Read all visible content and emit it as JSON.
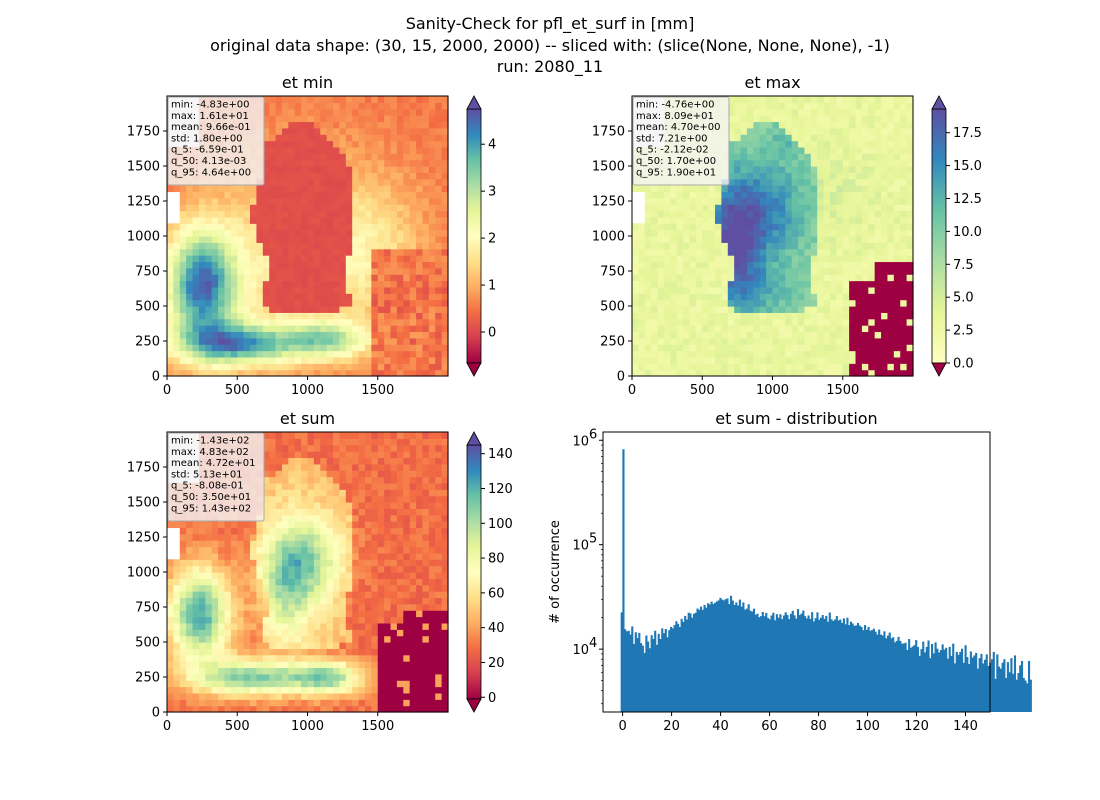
{
  "figure": {
    "suptitle_lines": [
      "Sanity-Check for pfl_et_surf in [mm]",
      "original data shape: (30, 15, 2000, 2000) -- sliced with: (slice(None, None, None), -1)",
      "run: 2080_11"
    ]
  },
  "chart_data": [
    {
      "type": "heatmap",
      "title": "et min",
      "colormap": "Spectral",
      "x_ticks": [
        "0",
        "500",
        "1000",
        "1500"
      ],
      "y_ticks": [
        "0",
        "250",
        "500",
        "750",
        "1000",
        "1250",
        "1500",
        "1750"
      ],
      "x_range": [
        0,
        2000
      ],
      "y_range": [
        0,
        2000
      ],
      "colorbar_range": [
        -0.66,
        4.75
      ],
      "colorbar_ticks": [
        "0",
        "1",
        "2",
        "3",
        "4"
      ],
      "colorbar_tick_values": [
        0,
        1,
        2,
        3,
        4
      ],
      "colorbar_extend": "both",
      "stats": [
        "min: -4.83e+00",
        "max: 1.61e+01",
        "mean: 9.66e-01",
        "std: 1.80e+00",
        "q_5: -6.59e-01",
        "q_50: 4.13e-03",
        "q_95: 4.64e+00"
      ],
      "pattern": "min"
    },
    {
      "type": "heatmap",
      "title": "et max",
      "colormap": "Spectral",
      "x_ticks": [
        "0",
        "500",
        "1000",
        "1500"
      ],
      "y_ticks": [
        "0",
        "250",
        "500",
        "750",
        "1000",
        "1250",
        "1500",
        "1750"
      ],
      "x_range": [
        0,
        2000
      ],
      "y_range": [
        0,
        2000
      ],
      "colorbar_range": [
        0,
        19.3
      ],
      "colorbar_ticks": [
        "0.0",
        "2.5",
        "5.0",
        "7.5",
        "10.0",
        "12.5",
        "15.0",
        "17.5"
      ],
      "colorbar_tick_values": [
        0,
        2.5,
        5,
        7.5,
        10,
        12.5,
        15,
        17.5
      ],
      "colorbar_extend": "both",
      "stats": [
        "min: -4.76e+00",
        "max: 8.09e+01",
        "mean: 4.70e+00",
        "std: 7.21e+00",
        "q_5: -2.12e-02",
        "q_50: 1.70e+00",
        "q_95: 1.90e+01"
      ],
      "pattern": "max"
    },
    {
      "type": "heatmap",
      "title": "et sum",
      "colormap": "Spectral",
      "x_ticks": [
        "0",
        "500",
        "1000",
        "1500"
      ],
      "y_ticks": [
        "0",
        "250",
        "500",
        "750",
        "1000",
        "1250",
        "1500",
        "1750"
      ],
      "x_range": [
        0,
        2000
      ],
      "y_range": [
        0,
        2000
      ],
      "colorbar_range": [
        -1,
        145
      ],
      "colorbar_ticks": [
        "0",
        "20",
        "40",
        "60",
        "80",
        "100",
        "120",
        "140"
      ],
      "colorbar_tick_values": [
        0,
        20,
        40,
        60,
        80,
        100,
        120,
        140
      ],
      "colorbar_extend": "both",
      "stats": [
        "min: -1.43e+02",
        "max: 4.83e+02",
        "mean: 4.72e+01",
        "std: 5.13e+01",
        "q_5: -8.08e-01",
        "q_50: 3.50e+01",
        "q_95: 1.43e+02"
      ],
      "pattern": "sum"
    },
    {
      "type": "bar",
      "title": "et sum - distribution",
      "ylabel": "# of occurrence",
      "xlabel": "",
      "yscale": "log",
      "xlim": [
        -8,
        150
      ],
      "ylim": [
        2500,
        1200000
      ],
      "x_ticks": [
        "0",
        "20",
        "40",
        "60",
        "80",
        "100",
        "120",
        "140"
      ],
      "x_tick_values": [
        0,
        20,
        40,
        60,
        80,
        100,
        120,
        140
      ],
      "y_ticks": [
        {
          "value": 1000000,
          "base": "10",
          "exp": "6"
        },
        {
          "value": 100000,
          "base": "10",
          "exp": "5"
        },
        {
          "value": 10000,
          "base": "10",
          "exp": "4"
        }
      ],
      "bar_color": "#1f77b4",
      "bin_start": -0.8,
      "bin_width": 0.72,
      "values": [
        22500,
        820000,
        15500,
        14800,
        15000,
        13800,
        16500,
        11200,
        14500,
        12800,
        14300,
        11400,
        10800,
        9200,
        13500,
        11800,
        10200,
        13600,
        12500,
        15000,
        11000,
        14000,
        12500,
        15800,
        14200,
        15600,
        13000,
        15200,
        16300,
        15800,
        17000,
        18500,
        17500,
        16300,
        19500,
        18200,
        20800,
        19200,
        22300,
        22000,
        20000,
        21800,
        22300,
        24500,
        23800,
        25500,
        23800,
        26500,
        25000,
        27500,
        26800,
        28500,
        27000,
        27800,
        28600,
        29300,
        31000,
        29800,
        29300,
        30100,
        30600,
        27000,
        32400,
        29200,
        26500,
        28000,
        26200,
        29800,
        25500,
        28000,
        23900,
        24400,
        26900,
        23300,
        22900,
        24400,
        21400,
        21800,
        20200,
        20700,
        22700,
        20700,
        22200,
        19900,
        19300,
        21000,
        22300,
        18900,
        21600,
        20000,
        21600,
        19400,
        21000,
        22500,
        21200,
        19400,
        21800,
        23300,
        21100,
        19600,
        24200,
        21200,
        21900,
        23400,
        20700,
        19700,
        21000,
        19500,
        22600,
        18400,
        19800,
        22500,
        19100,
        20000,
        21200,
        19500,
        20800,
        18300,
        22400,
        19300,
        18600,
        19200,
        20700,
        18800,
        19200,
        17800,
        19700,
        17300,
        20000,
        17000,
        18300,
        17600,
        16700,
        16900,
        17800,
        16800,
        16300,
        15200,
        17000,
        15300,
        16300,
        15000,
        15200,
        15700,
        14700,
        13800,
        15400,
        13800,
        13500,
        14800,
        12700,
        13500,
        14400,
        12700,
        13000,
        11600,
        12000,
        13100,
        12000,
        11300,
        11300,
        11500,
        9800,
        12500,
        10300,
        10600,
        10900,
        12200,
        10500,
        8600,
        10000,
        11800,
        9300,
        10500,
        12100,
        8200,
        11200,
        9100,
        11600,
        10100,
        9300,
        9800,
        11100,
        9900,
        10300,
        8100,
        10500,
        8600,
        11300,
        7300,
        9400,
        8800,
        9400,
        10100,
        7400,
        10900,
        8400,
        7200,
        9500,
        8300,
        8700,
        9200,
        6500,
        8200,
        9000,
        7300,
        7900,
        8900,
        6900,
        7400,
        8000,
        9400,
        5200,
        8900,
        6800,
        6500,
        7400,
        8000,
        5300,
        7500,
        6000,
        8200,
        5800,
        8700,
        5100,
        5900,
        7000,
        7700,
        5300,
        5000,
        4700,
        7700,
        5100
      ]
    }
  ]
}
